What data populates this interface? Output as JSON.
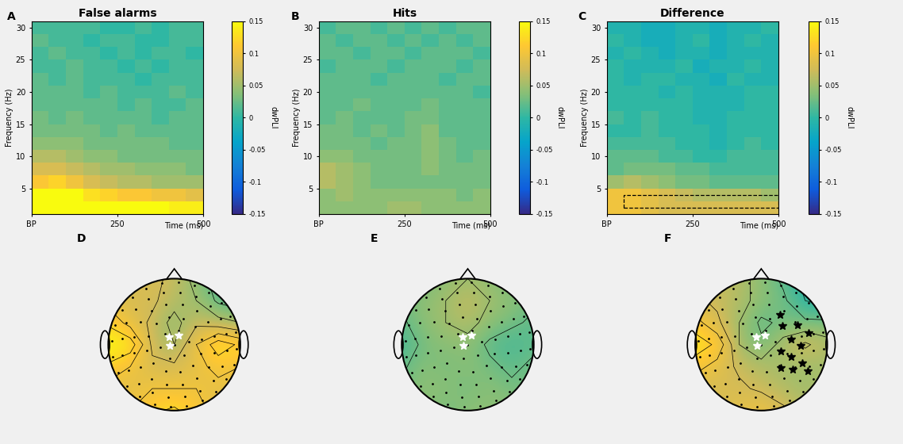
{
  "chart_data": [
    {
      "type": "heatmap",
      "panel": "A",
      "title": "False alarms",
      "x_label": "Time (ms)",
      "y_label": "Frequency (Hz)",
      "time_bins": [
        0,
        50,
        100,
        150,
        200,
        250,
        300,
        350,
        400,
        450,
        500
      ],
      "frequency_bins": [
        1,
        3,
        5,
        7,
        9,
        11,
        13,
        15,
        17,
        19,
        21,
        23,
        25,
        27,
        29,
        31
      ],
      "xlim": [
        0,
        500
      ],
      "ylim": [
        1,
        31
      ],
      "xticks": [
        {
          "value": 0,
          "label": "BP"
        },
        250,
        500
      ],
      "yticks": [
        5,
        10,
        15,
        20,
        25,
        30
      ],
      "colorbar": {
        "label": "dwPLI",
        "range": [
          -0.15,
          0.15
        ],
        "ticks": [
          -0.15,
          -0.1,
          -0.05,
          0,
          0.05,
          0.1,
          0.15
        ]
      },
      "cells": [
        [
          0.16,
          0.18,
          0.18,
          0.17,
          0.16,
          0.16,
          0.15,
          0.15,
          0.14,
          0.14
        ],
        [
          0.15,
          0.16,
          0.15,
          0.13,
          0.12,
          0.11,
          0.11,
          0.1,
          0.1,
          0.09
        ],
        [
          0.11,
          0.12,
          0.1,
          0.08,
          0.07,
          0.06,
          0.06,
          0.05,
          0.05,
          0.05
        ],
        [
          0.08,
          0.08,
          0.07,
          0.06,
          0.05,
          0.05,
          0.04,
          0.04,
          0.04,
          0.03
        ],
        [
          0.06,
          0.06,
          0.05,
          0.04,
          0.04,
          0.03,
          0.03,
          0.03,
          0.03,
          0.03
        ],
        [
          0.04,
          0.04,
          0.04,
          0.03,
          0.03,
          0.03,
          0.03,
          0.03,
          0.02,
          0.02
        ],
        [
          0.03,
          0.03,
          0.03,
          0.03,
          0.02,
          0.03,
          0.02,
          0.02,
          0.02,
          0.02
        ],
        [
          0.03,
          0.02,
          0.03,
          0.02,
          0.02,
          0.02,
          0.02,
          0.01,
          0.02,
          0.02
        ],
        [
          0.02,
          0.02,
          0.02,
          0.02,
          0.02,
          0.01,
          0.02,
          0.01,
          0.01,
          0.02
        ],
        [
          0.02,
          0.02,
          0.02,
          0.01,
          0.02,
          0.01,
          0.01,
          0.01,
          0.02,
          0.01
        ],
        [
          0.02,
          0.01,
          0.02,
          0.01,
          0.01,
          0.01,
          0.0,
          0.01,
          0.01,
          0.01
        ],
        [
          0.01,
          0.01,
          0.02,
          0.01,
          0.01,
          0.0,
          0.01,
          0.0,
          0.01,
          0.01
        ],
        [
          0.01,
          0.02,
          0.01,
          0.01,
          0.0,
          0.01,
          0.0,
          0.01,
          0.01,
          0.0
        ],
        [
          0.02,
          0.01,
          0.01,
          0.0,
          0.01,
          0.01,
          0.0,
          0.0,
          0.01,
          0.01
        ],
        [
          0.01,
          0.01,
          0.01,
          0.01,
          0.0,
          0.0,
          0.01,
          0.0,
          0.01,
          0.01
        ]
      ]
    },
    {
      "type": "heatmap",
      "panel": "B",
      "title": "Hits",
      "x_label": "Time (ms)",
      "y_label": "Frequency (Hz)",
      "time_bins": [
        0,
        50,
        100,
        150,
        200,
        250,
        300,
        350,
        400,
        450,
        500
      ],
      "frequency_bins": [
        1,
        3,
        5,
        7,
        9,
        11,
        13,
        15,
        17,
        19,
        21,
        23,
        25,
        27,
        29,
        31
      ],
      "xlim": [
        0,
        500
      ],
      "ylim": [
        1,
        31
      ],
      "xticks": [
        {
          "value": 0,
          "label": "BP"
        },
        250,
        500
      ],
      "yticks": [
        5,
        10,
        15,
        20,
        25,
        30
      ],
      "colorbar": {
        "label": "dwPLI",
        "range": [
          -0.15,
          0.15
        ],
        "ticks": [
          -0.15,
          -0.1,
          -0.05,
          0,
          0.05,
          0.1,
          0.15
        ]
      },
      "cells": [
        [
          0.04,
          0.04,
          0.04,
          0.04,
          0.05,
          0.05,
          0.04,
          0.04,
          0.04,
          0.04
        ],
        [
          0.04,
          0.05,
          0.04,
          0.04,
          0.04,
          0.04,
          0.04,
          0.04,
          0.03,
          0.04
        ],
        [
          0.06,
          0.05,
          0.04,
          0.03,
          0.03,
          0.03,
          0.03,
          0.03,
          0.03,
          0.03
        ],
        [
          0.06,
          0.05,
          0.04,
          0.03,
          0.03,
          0.03,
          0.04,
          0.03,
          0.03,
          0.03
        ],
        [
          0.04,
          0.04,
          0.03,
          0.03,
          0.03,
          0.03,
          0.04,
          0.03,
          0.02,
          0.03
        ],
        [
          0.03,
          0.03,
          0.03,
          0.02,
          0.03,
          0.03,
          0.04,
          0.03,
          0.02,
          0.02
        ],
        [
          0.03,
          0.03,
          0.02,
          0.03,
          0.02,
          0.03,
          0.04,
          0.02,
          0.02,
          0.02
        ],
        [
          0.02,
          0.03,
          0.02,
          0.02,
          0.02,
          0.03,
          0.03,
          0.02,
          0.02,
          0.02
        ],
        [
          0.02,
          0.02,
          0.03,
          0.02,
          0.02,
          0.02,
          0.03,
          0.02,
          0.02,
          0.02
        ],
        [
          0.02,
          0.02,
          0.02,
          0.02,
          0.02,
          0.02,
          0.02,
          0.02,
          0.02,
          0.01
        ],
        [
          0.02,
          0.02,
          0.02,
          0.01,
          0.02,
          0.02,
          0.02,
          0.01,
          0.02,
          0.02
        ],
        [
          0.01,
          0.02,
          0.02,
          0.02,
          0.01,
          0.02,
          0.02,
          0.02,
          0.01,
          0.02
        ],
        [
          0.02,
          0.02,
          0.01,
          0.02,
          0.02,
          0.01,
          0.02,
          0.02,
          0.02,
          0.01
        ],
        [
          0.02,
          0.01,
          0.02,
          0.02,
          0.01,
          0.02,
          0.01,
          0.02,
          0.01,
          0.02
        ],
        [
          0.01,
          0.02,
          0.02,
          0.01,
          0.02,
          0.01,
          0.02,
          0.01,
          0.02,
          0.02
        ]
      ]
    },
    {
      "type": "heatmap",
      "panel": "C",
      "title": "Difference",
      "x_label": "Time (ms)",
      "y_label": "Frequency (Hz)",
      "time_bins": [
        0,
        50,
        100,
        150,
        200,
        250,
        300,
        350,
        400,
        450,
        500
      ],
      "frequency_bins": [
        1,
        3,
        5,
        7,
        9,
        11,
        13,
        15,
        17,
        19,
        21,
        23,
        25,
        27,
        29,
        31
      ],
      "xlim": [
        0,
        500
      ],
      "ylim": [
        1,
        31
      ],
      "xticks": [
        {
          "value": 0,
          "label": "BP"
        },
        250,
        500
      ],
      "yticks": [
        5,
        10,
        15,
        20,
        25,
        30
      ],
      "colorbar": {
        "label": "dwPLI",
        "range": [
          -0.15,
          0.15
        ],
        "ticks": [
          -0.15,
          -0.1,
          -0.05,
          0,
          0.05,
          0.1,
          0.15
        ]
      },
      "highlight": {
        "time": [
          50,
          500
        ],
        "frequency": [
          2,
          4
        ]
      },
      "cells": [
        [
          0.1,
          0.1,
          0.09,
          0.08,
          0.08,
          0.08,
          0.08,
          0.08,
          0.08,
          0.08
        ],
        [
          0.1,
          0.1,
          0.09,
          0.08,
          0.07,
          0.06,
          0.06,
          0.06,
          0.06,
          0.05
        ],
        [
          0.05,
          0.06,
          0.05,
          0.04,
          0.03,
          0.03,
          0.02,
          0.02,
          0.02,
          0.02
        ],
        [
          0.02,
          0.03,
          0.03,
          0.03,
          0.02,
          0.02,
          0.01,
          0.01,
          0.01,
          0.01
        ],
        [
          0.02,
          0.02,
          0.02,
          0.01,
          0.01,
          0.0,
          0.0,
          0.01,
          0.01,
          0.01
        ],
        [
          0.01,
          0.01,
          0.01,
          0.01,
          0.0,
          0.0,
          -0.01,
          0.0,
          0.01,
          0.0
        ],
        [
          0.0,
          0.0,
          0.01,
          0.0,
          0.0,
          0.0,
          -0.01,
          0.0,
          0.0,
          0.0
        ],
        [
          0.01,
          0.0,
          0.01,
          0.0,
          0.0,
          -0.01,
          -0.01,
          0.0,
          0.0,
          0.0
        ],
        [
          0.0,
          0.0,
          0.0,
          0.0,
          0.0,
          -0.01,
          -0.01,
          -0.01,
          0.0,
          0.0
        ],
        [
          0.0,
          0.0,
          0.0,
          -0.01,
          0.0,
          -0.01,
          -0.01,
          -0.01,
          0.0,
          0.0
        ],
        [
          0.0,
          -0.01,
          0.0,
          0.0,
          -0.01,
          -0.01,
          -0.02,
          0.0,
          -0.01,
          -0.01
        ],
        [
          0.0,
          -0.01,
          -0.01,
          -0.01,
          0.0,
          -0.02,
          -0.01,
          -0.01,
          0.0,
          -0.01
        ],
        [
          -0.01,
          0.0,
          -0.01,
          -0.02,
          -0.01,
          -0.01,
          -0.02,
          -0.01,
          -0.01,
          -0.01
        ],
        [
          0.0,
          -0.01,
          -0.02,
          -0.02,
          -0.01,
          0.0,
          -0.02,
          -0.01,
          0.0,
          -0.01
        ],
        [
          -0.01,
          -0.01,
          -0.02,
          -0.02,
          -0.01,
          -0.01,
          -0.02,
          -0.01,
          -0.01,
          0.0
        ]
      ]
    },
    {
      "type": "topoplot",
      "panel": "D",
      "color_range": [
        -0.15,
        0.15
      ],
      "cells": [
        [
          0.08,
          0.08,
          0.08,
          0.07,
          0.04,
          0.01,
          0.0
        ],
        [
          0.09,
          0.08,
          0.08,
          0.06,
          0.05,
          0.02,
          0.01
        ],
        [
          0.12,
          0.09,
          0.07,
          0.04,
          0.07,
          0.06,
          0.05
        ],
        [
          0.15,
          0.14,
          0.07,
          0.05,
          0.1,
          0.14,
          0.12
        ],
        [
          0.12,
          0.1,
          0.08,
          0.08,
          0.09,
          0.11,
          0.1
        ],
        [
          0.09,
          0.09,
          0.1,
          0.1,
          0.1,
          0.09,
          0.09
        ],
        [
          0.09,
          0.1,
          0.12,
          0.13,
          0.11,
          0.09,
          0.09
        ]
      ],
      "channels": [
        {
          "x": -0.08,
          "y": 0.12,
          "color": "white"
        },
        {
          "x": 0.06,
          "y": 0.14,
          "color": "white"
        },
        {
          "x": -0.07,
          "y": -0.02,
          "color": "white"
        }
      ]
    },
    {
      "type": "topoplot",
      "panel": "E",
      "color_range": [
        -0.15,
        0.15
      ],
      "cells": [
        [
          0.03,
          0.03,
          0.04,
          0.05,
          0.04,
          0.03,
          0.02
        ],
        [
          0.03,
          0.04,
          0.05,
          0.07,
          0.05,
          0.04,
          0.03
        ],
        [
          0.02,
          0.04,
          0.05,
          0.06,
          0.04,
          0.03,
          0.02
        ],
        [
          0.01,
          0.03,
          0.04,
          0.04,
          0.02,
          0.01,
          0.02
        ],
        [
          0.02,
          0.04,
          0.03,
          0.04,
          0.03,
          0.02,
          0.03
        ],
        [
          0.03,
          0.04,
          0.04,
          0.03,
          0.04,
          0.03,
          0.03
        ],
        [
          0.04,
          0.04,
          0.03,
          0.04,
          0.04,
          0.04,
          0.04
        ]
      ],
      "channels": [
        {
          "x": -0.08,
          "y": 0.12,
          "color": "white"
        },
        {
          "x": 0.06,
          "y": 0.14,
          "color": "white"
        },
        {
          "x": -0.07,
          "y": -0.02,
          "color": "white"
        }
      ]
    },
    {
      "type": "topoplot",
      "panel": "F",
      "color_range": [
        -0.15,
        0.15
      ],
      "cells": [
        [
          0.07,
          0.07,
          0.06,
          0.04,
          0.02,
          -0.01,
          -0.02
        ],
        [
          0.08,
          0.07,
          0.06,
          0.04,
          0.03,
          0.0,
          -0.01
        ],
        [
          0.11,
          0.08,
          0.05,
          0.02,
          0.03,
          0.03,
          0.03
        ],
        [
          0.14,
          0.12,
          0.05,
          0.03,
          0.06,
          0.08,
          0.06
        ],
        [
          0.11,
          0.09,
          0.07,
          0.06,
          0.05,
          0.05,
          0.05
        ],
        [
          0.08,
          0.08,
          0.08,
          0.07,
          0.06,
          0.05,
          0.06
        ],
        [
          0.07,
          0.08,
          0.09,
          0.1,
          0.08,
          0.06,
          0.06
        ]
      ],
      "channels": [
        {
          "x": -0.08,
          "y": 0.12,
          "color": "white"
        },
        {
          "x": 0.06,
          "y": 0.14,
          "color": "white"
        },
        {
          "x": -0.07,
          "y": -0.02,
          "color": "white"
        },
        {
          "x": 0.28,
          "y": 0.45,
          "color": "black"
        },
        {
          "x": 0.32,
          "y": 0.28,
          "color": "black"
        },
        {
          "x": 0.55,
          "y": 0.3,
          "color": "black"
        },
        {
          "x": 0.72,
          "y": 0.18,
          "color": "black"
        },
        {
          "x": 0.45,
          "y": 0.08,
          "color": "black"
        },
        {
          "x": 0.3,
          "y": -0.1,
          "color": "black"
        },
        {
          "x": 0.6,
          "y": -0.02,
          "color": "black"
        },
        {
          "x": 0.45,
          "y": -0.18,
          "color": "black"
        },
        {
          "x": 0.62,
          "y": -0.28,
          "color": "black"
        },
        {
          "x": 0.3,
          "y": -0.35,
          "color": "black"
        },
        {
          "x": 0.48,
          "y": -0.38,
          "color": "black"
        },
        {
          "x": 0.7,
          "y": -0.4,
          "color": "black"
        }
      ]
    }
  ]
}
